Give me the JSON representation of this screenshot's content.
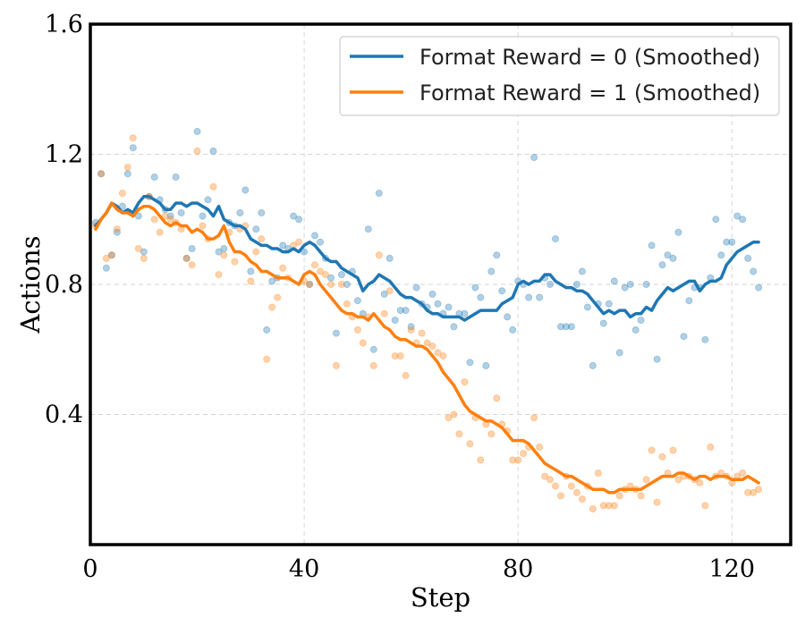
{
  "chart_data": {
    "type": "line",
    "title": "",
    "xlabel": "Step",
    "ylabel": "Actions",
    "xlim": [
      0,
      131
    ],
    "ylim": [
      0,
      1.6
    ],
    "xticks": [
      0,
      40,
      80,
      120
    ],
    "xtick_labels": [
      "0",
      "40",
      "80",
      "120"
    ],
    "yticks": [
      0.4,
      0.8,
      1.2,
      1.6
    ],
    "ytick_labels": [
      "0.4",
      "0.8",
      "1.2",
      "1.6"
    ],
    "grid": true,
    "legend_position": "top-right",
    "colors": {
      "series0": "#1f77b4",
      "series1": "#ff7f0e",
      "frame": "#000000"
    },
    "series": [
      {
        "name": "Format Reward = 0 (Smoothed)",
        "x": [
          1,
          2,
          3,
          4,
          5,
          6,
          7,
          8,
          9,
          10,
          11,
          12,
          13,
          14,
          15,
          16,
          17,
          18,
          19,
          20,
          21,
          22,
          23,
          24,
          25,
          26,
          27,
          28,
          29,
          30,
          31,
          32,
          33,
          34,
          35,
          36,
          37,
          38,
          39,
          40,
          41,
          42,
          43,
          44,
          45,
          46,
          47,
          48,
          49,
          50,
          51,
          52,
          53,
          54,
          55,
          56,
          57,
          58,
          59,
          60,
          61,
          62,
          63,
          64,
          65,
          66,
          67,
          68,
          69,
          70,
          71,
          72,
          73,
          74,
          75,
          76,
          77,
          78,
          79,
          80,
          81,
          82,
          83,
          84,
          85,
          86,
          87,
          88,
          89,
          90,
          91,
          92,
          93,
          94,
          95,
          96,
          97,
          98,
          99,
          100,
          101,
          102,
          103,
          104,
          105,
          106,
          107,
          108,
          109,
          110,
          111,
          112,
          113,
          114,
          115,
          116,
          117,
          118,
          119,
          120,
          121,
          122,
          123,
          124,
          125
        ],
        "values": [
          0.98,
          1.0,
          1.02,
          1.05,
          1.04,
          1.02,
          1.03,
          1.02,
          1.05,
          1.07,
          1.07,
          1.06,
          1.05,
          1.03,
          1.03,
          1.05,
          1.05,
          1.04,
          1.05,
          1.05,
          1.04,
          1.03,
          1.01,
          1.04,
          1.0,
          0.99,
          0.98,
          0.98,
          0.97,
          0.94,
          0.93,
          0.92,
          0.92,
          0.91,
          0.91,
          0.9,
          0.9,
          0.91,
          0.9,
          0.92,
          0.93,
          0.92,
          0.9,
          0.88,
          0.87,
          0.87,
          0.85,
          0.84,
          0.83,
          0.82,
          0.78,
          0.8,
          0.81,
          0.83,
          0.82,
          0.81,
          0.79,
          0.77,
          0.76,
          0.76,
          0.75,
          0.74,
          0.72,
          0.71,
          0.71,
          0.7,
          0.7,
          0.7,
          0.7,
          0.69,
          0.7,
          0.71,
          0.72,
          0.72,
          0.72,
          0.72,
          0.74,
          0.75,
          0.76,
          0.8,
          0.81,
          0.8,
          0.81,
          0.81,
          0.83,
          0.83,
          0.81,
          0.8,
          0.79,
          0.79,
          0.78,
          0.78,
          0.77,
          0.75,
          0.73,
          0.71,
          0.72,
          0.71,
          0.72,
          0.72,
          0.7,
          0.71,
          0.71,
          0.73,
          0.72,
          0.75,
          0.77,
          0.79,
          0.78,
          0.79,
          0.8,
          0.81,
          0.81,
          0.78,
          0.8,
          0.81,
          0.81,
          0.82,
          0.86,
          0.88,
          0.9,
          0.91,
          0.92,
          0.93,
          0.93
        ],
        "scatter_x": [
          1,
          2,
          3,
          4,
          5,
          6,
          7,
          8,
          9,
          10,
          11,
          12,
          13,
          14,
          15,
          16,
          17,
          18,
          19,
          20,
          21,
          22,
          23,
          24,
          25,
          26,
          27,
          28,
          29,
          30,
          31,
          32,
          33,
          34,
          35,
          36,
          37,
          38,
          39,
          40,
          41,
          42,
          43,
          44,
          45,
          46,
          47,
          48,
          49,
          50,
          51,
          52,
          53,
          54,
          55,
          56,
          57,
          58,
          59,
          60,
          61,
          62,
          63,
          64,
          65,
          66,
          67,
          68,
          69,
          70,
          71,
          72,
          73,
          74,
          75,
          76,
          77,
          78,
          79,
          80,
          81,
          82,
          83,
          84,
          85,
          86,
          87,
          88,
          89,
          90,
          91,
          92,
          93,
          94,
          95,
          96,
          97,
          98,
          99,
          100,
          101,
          102,
          103,
          104,
          105,
          106,
          107,
          108,
          109,
          110,
          111,
          112,
          113,
          114,
          115,
          116,
          117,
          118,
          119,
          120,
          121,
          122,
          123,
          124,
          125
        ],
        "scatter_values": [
          0.99,
          1.14,
          0.85,
          0.89,
          0.96,
          1.04,
          1.14,
          1.22,
          1.01,
          0.9,
          1.07,
          1.13,
          1.06,
          1.03,
          1.01,
          1.13,
          1.02,
          0.88,
          0.91,
          1.27,
          1.01,
          1.06,
          1.21,
          0.9,
          0.91,
          0.99,
          0.98,
          1.02,
          1.09,
          0.84,
          0.97,
          1.02,
          0.66,
          0.81,
          0.82,
          0.92,
          0.91,
          1.01,
          1.0,
          0.9,
          0.8,
          0.95,
          0.93,
          0.88,
          0.82,
          0.65,
          0.83,
          0.8,
          0.84,
          0.75,
          0.71,
          0.97,
          0.6,
          1.08,
          0.77,
          0.88,
          0.69,
          0.72,
          0.72,
          0.67,
          0.79,
          0.74,
          0.73,
          0.77,
          0.74,
          0.71,
          0.73,
          0.67,
          0.71,
          0.71,
          0.56,
          0.79,
          0.76,
          0.55,
          0.84,
          0.89,
          0.78,
          0.7,
          0.66,
          0.81,
          0.8,
          0.76,
          1.19,
          0.76,
          0.82,
          0.8,
          0.94,
          0.67,
          0.67,
          0.67,
          0.8,
          0.84,
          0.73,
          0.55,
          0.74,
          0.68,
          0.74,
          0.81,
          0.59,
          0.79,
          0.8,
          0.66,
          0.69,
          0.8,
          0.92,
          0.57,
          0.86,
          0.89,
          0.88,
          0.96,
          0.64,
          0.75,
          0.79,
          0.79,
          0.63,
          0.82,
          1.0,
          0.89,
          0.93,
          0.93,
          1.01,
          1.0,
          0.88,
          0.84,
          0.79
        ]
      },
      {
        "name": "Format Reward = 1 (Smoothed)",
        "x": [
          1,
          2,
          3,
          4,
          5,
          6,
          7,
          8,
          9,
          10,
          11,
          12,
          13,
          14,
          15,
          16,
          17,
          18,
          19,
          20,
          21,
          22,
          23,
          24,
          25,
          26,
          27,
          28,
          29,
          30,
          31,
          32,
          33,
          34,
          35,
          36,
          37,
          38,
          39,
          40,
          41,
          42,
          43,
          44,
          45,
          46,
          47,
          48,
          49,
          50,
          51,
          52,
          53,
          54,
          55,
          56,
          57,
          58,
          59,
          60,
          61,
          62,
          63,
          64,
          65,
          66,
          67,
          68,
          69,
          70,
          71,
          72,
          73,
          74,
          75,
          76,
          77,
          78,
          79,
          80,
          81,
          82,
          83,
          84,
          85,
          86,
          87,
          88,
          89,
          90,
          91,
          92,
          93,
          94,
          95,
          96,
          97,
          98,
          99,
          100,
          101,
          102,
          103,
          104,
          105,
          106,
          107,
          108,
          109,
          110,
          111,
          112,
          113,
          114,
          115,
          116,
          117,
          118,
          119,
          120,
          121,
          122,
          123,
          124,
          125
        ],
        "values": [
          0.97,
          1.0,
          1.02,
          1.05,
          1.03,
          1.02,
          1.02,
          1.01,
          1.03,
          1.04,
          1.04,
          1.03,
          1.01,
          0.99,
          0.98,
          0.99,
          0.98,
          0.98,
          0.96,
          0.97,
          0.96,
          0.94,
          0.94,
          0.95,
          0.98,
          0.93,
          0.9,
          0.9,
          0.89,
          0.87,
          0.86,
          0.84,
          0.84,
          0.83,
          0.82,
          0.82,
          0.82,
          0.81,
          0.8,
          0.83,
          0.84,
          0.83,
          0.8,
          0.78,
          0.76,
          0.74,
          0.72,
          0.71,
          0.71,
          0.7,
          0.7,
          0.69,
          0.71,
          0.69,
          0.67,
          0.66,
          0.64,
          0.63,
          0.63,
          0.62,
          0.61,
          0.61,
          0.6,
          0.58,
          0.56,
          0.53,
          0.51,
          0.49,
          0.46,
          0.43,
          0.41,
          0.4,
          0.39,
          0.38,
          0.38,
          0.37,
          0.36,
          0.34,
          0.32,
          0.32,
          0.32,
          0.31,
          0.29,
          0.27,
          0.25,
          0.24,
          0.23,
          0.22,
          0.21,
          0.21,
          0.2,
          0.19,
          0.18,
          0.17,
          0.17,
          0.17,
          0.16,
          0.16,
          0.17,
          0.17,
          0.17,
          0.17,
          0.17,
          0.18,
          0.19,
          0.2,
          0.21,
          0.21,
          0.21,
          0.22,
          0.22,
          0.21,
          0.2,
          0.21,
          0.21,
          0.2,
          0.21,
          0.21,
          0.21,
          0.2,
          0.2,
          0.2,
          0.21,
          0.2,
          0.19
        ],
        "scatter_x": [
          1,
          2,
          3,
          4,
          5,
          6,
          7,
          8,
          9,
          10,
          11,
          12,
          13,
          14,
          15,
          16,
          17,
          18,
          19,
          20,
          21,
          22,
          23,
          24,
          25,
          26,
          27,
          28,
          29,
          30,
          31,
          32,
          33,
          34,
          35,
          36,
          37,
          38,
          39,
          40,
          41,
          42,
          43,
          44,
          45,
          46,
          47,
          48,
          49,
          50,
          51,
          52,
          53,
          54,
          55,
          56,
          57,
          58,
          59,
          60,
          61,
          62,
          63,
          64,
          65,
          66,
          67,
          68,
          69,
          70,
          71,
          72,
          73,
          74,
          75,
          76,
          77,
          78,
          79,
          80,
          81,
          82,
          83,
          84,
          85,
          86,
          87,
          88,
          89,
          90,
          91,
          92,
          93,
          94,
          95,
          96,
          97,
          98,
          99,
          100,
          101,
          102,
          103,
          104,
          105,
          106,
          107,
          108,
          109,
          110,
          111,
          112,
          113,
          114,
          115,
          116,
          117,
          118,
          119,
          120,
          121,
          122,
          123,
          124,
          125
        ],
        "scatter_values": [
          0.98,
          1.14,
          0.88,
          0.89,
          0.97,
          1.08,
          1.16,
          1.25,
          0.91,
          0.88,
          1.07,
          1.0,
          0.96,
          1.01,
          1.0,
          0.99,
          0.97,
          0.88,
          0.86,
          1.21,
          0.98,
          0.94,
          1.1,
          0.83,
          0.89,
          0.96,
          0.87,
          0.97,
          0.98,
          0.81,
          0.9,
          0.94,
          0.57,
          0.73,
          0.76,
          0.85,
          0.82,
          0.92,
          0.93,
          0.81,
          0.8,
          0.86,
          0.84,
          0.83,
          0.8,
          0.55,
          0.8,
          0.74,
          0.7,
          0.66,
          0.62,
          0.7,
          0.55,
          0.89,
          0.71,
          0.78,
          0.58,
          0.58,
          0.52,
          0.66,
          0.62,
          0.65,
          0.62,
          0.61,
          0.59,
          0.58,
          0.39,
          0.4,
          0.34,
          0.5,
          0.31,
          0.39,
          0.26,
          0.37,
          0.34,
          0.45,
          0.37,
          0.35,
          0.26,
          0.26,
          0.28,
          0.3,
          0.39,
          0.3,
          0.21,
          0.2,
          0.18,
          0.15,
          0.21,
          0.18,
          0.16,
          0.14,
          0.18,
          0.11,
          0.22,
          0.12,
          0.12,
          0.12,
          0.15,
          0.17,
          0.18,
          0.17,
          0.15,
          0.2,
          0.29,
          0.13,
          0.27,
          0.22,
          0.29,
          0.2,
          0.21,
          0.21,
          0.2,
          0.19,
          0.12,
          0.3,
          0.21,
          0.22,
          0.21,
          0.19,
          0.21,
          0.22,
          0.16,
          0.16,
          0.17
        ]
      }
    ]
  }
}
